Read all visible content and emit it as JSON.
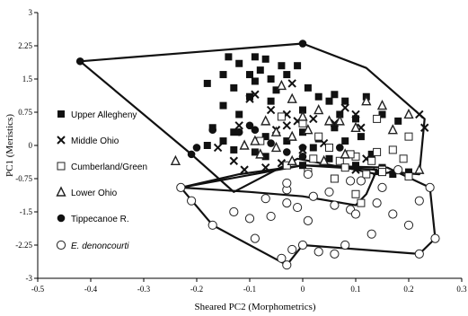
{
  "chart_data": {
    "type": "scatter",
    "xlabel": "Sheared PC2 (Morphometrics)",
    "ylabel": "PC1 (Meristics)",
    "xlim": [
      -0.5,
      0.3
    ],
    "ylim": [
      -3,
      3
    ],
    "xticks": [
      "-0.5",
      "-0.4",
      "-0.3",
      "-0.2",
      "-0.1",
      "0",
      "0.1",
      "0.2",
      "0.3"
    ],
    "yticks": [
      "-3",
      "-2.25",
      "-1.5",
      "-0.75",
      "0",
      "0.75",
      "1.5",
      "2.25",
      "3"
    ],
    "legend_position": "left",
    "series": [
      {
        "name": "Upper Allegheny",
        "marker": "filled-square",
        "points": [
          [
            -0.14,
            2.0
          ],
          [
            -0.09,
            2.0
          ],
          [
            -0.07,
            1.95
          ],
          [
            -0.12,
            1.85
          ],
          [
            -0.04,
            1.8
          ],
          [
            -0.01,
            1.8
          ],
          [
            -0.08,
            1.7
          ],
          [
            -0.15,
            1.6
          ],
          [
            -0.1,
            1.6
          ],
          [
            -0.06,
            1.5
          ],
          [
            -0.03,
            1.6
          ],
          [
            -0.09,
            1.45
          ],
          [
            -0.18,
            1.4
          ],
          [
            -0.13,
            1.3
          ],
          [
            -0.05,
            1.25
          ],
          [
            0.01,
            1.3
          ],
          [
            0.03,
            1.1
          ],
          [
            0.06,
            1.15
          ],
          [
            0.08,
            1.0
          ],
          [
            0.12,
            1.1
          ],
          [
            -0.1,
            1.1
          ],
          [
            -0.06,
            1.0
          ],
          [
            0.05,
            1.0
          ],
          [
            -0.15,
            0.9
          ],
          [
            0.0,
            0.8
          ],
          [
            0.07,
            0.7
          ],
          [
            -0.12,
            0.7
          ],
          [
            0.1,
            0.6
          ],
          [
            0.15,
            0.7
          ],
          [
            -0.17,
            0.4
          ],
          [
            -0.13,
            0.3
          ],
          [
            0.0,
            0.3
          ],
          [
            0.06,
            0.4
          ],
          [
            0.11,
            0.2
          ],
          [
            -0.15,
            0.1
          ],
          [
            -0.07,
            0.2
          ],
          [
            -0.03,
            0.1
          ],
          [
            0.03,
            0.15
          ],
          [
            0.08,
            0.1
          ],
          [
            -0.18,
            0.0
          ],
          [
            -0.13,
            -0.1
          ],
          [
            -0.09,
            -0.15
          ],
          [
            0.02,
            -0.05
          ],
          [
            -0.07,
            -0.25
          ],
          [
            0.05,
            -0.3
          ],
          [
            0.1,
            -0.45
          ],
          [
            0.15,
            -0.5
          ],
          [
            0.17,
            -0.65
          ],
          [
            0.2,
            -0.6
          ],
          [
            0.13,
            -0.2
          ],
          [
            0.18,
            0.55
          ],
          [
            0.0,
            -0.45
          ]
        ]
      },
      {
        "name": "Middle Ohio",
        "marker": "x",
        "points": [
          [
            -0.1,
            1.05
          ],
          [
            -0.09,
            1.15
          ],
          [
            -0.06,
            0.8
          ],
          [
            -0.02,
            1.4
          ],
          [
            -0.03,
            0.7
          ],
          [
            0.02,
            0.6
          ],
          [
            0.06,
            0.5
          ],
          [
            0.08,
            0.85
          ],
          [
            0.1,
            0.7
          ],
          [
            0.11,
            0.4
          ],
          [
            -0.12,
            0.45
          ],
          [
            -0.05,
            0.35
          ],
          [
            -0.03,
            0.45
          ],
          [
            0.04,
            0.05
          ],
          [
            0.09,
            -0.2
          ],
          [
            0.12,
            -0.3
          ],
          [
            0.22,
            0.7
          ],
          [
            0.23,
            0.4
          ],
          [
            -0.16,
            -0.05
          ],
          [
            -0.13,
            -0.35
          ],
          [
            -0.11,
            -0.55
          ],
          [
            -0.07,
            -0.5
          ],
          [
            -0.04,
            -0.4
          ],
          [
            0.0,
            -0.1
          ],
          [
            0.1,
            -0.55
          ],
          [
            0.14,
            -0.6
          ],
          [
            -0.01,
            0.55
          ]
        ]
      },
      {
        "name": "Cumberland/Green",
        "marker": "open-square",
        "points": [
          [
            -0.04,
            0.65
          ],
          [
            0.0,
            0.5
          ],
          [
            -0.08,
            0.1
          ],
          [
            0.03,
            0.2
          ],
          [
            0.05,
            -0.05
          ],
          [
            0.07,
            -0.35
          ],
          [
            0.08,
            -0.5
          ],
          [
            0.1,
            -0.25
          ],
          [
            0.12,
            -0.65
          ],
          [
            0.13,
            -0.35
          ],
          [
            0.15,
            -0.55
          ],
          [
            0.14,
            -0.15
          ],
          [
            0.17,
            -0.1
          ],
          [
            0.19,
            -0.3
          ],
          [
            0.2,
            -0.7
          ],
          [
            0.1,
            -1.1
          ],
          [
            0.11,
            -1.3
          ],
          [
            0.02,
            -0.3
          ],
          [
            -0.03,
            -0.45
          ],
          [
            0.06,
            -0.75
          ],
          [
            0.09,
            -0.2
          ],
          [
            0.01,
            -0.6
          ],
          [
            0.14,
            0.6
          ],
          [
            0.15,
            -0.6
          ],
          [
            0.2,
            0.2
          ]
        ]
      },
      {
        "name": "Lower Ohio",
        "marker": "open-triangle",
        "points": [
          [
            -0.04,
            1.35
          ],
          [
            -0.02,
            1.05
          ],
          [
            0.03,
            0.8
          ],
          [
            0.0,
            0.65
          ],
          [
            0.1,
            0.4
          ],
          [
            0.12,
            1.0
          ],
          [
            0.15,
            0.9
          ],
          [
            -0.07,
            0.55
          ],
          [
            -0.05,
            0.3
          ],
          [
            -0.02,
            0.2
          ],
          [
            0.01,
            0.35
          ],
          [
            0.07,
            0.55
          ],
          [
            -0.11,
            0.0
          ],
          [
            -0.08,
            -0.2
          ],
          [
            -0.05,
            -0.05
          ],
          [
            -0.02,
            -0.35
          ],
          [
            0.04,
            -0.35
          ],
          [
            0.08,
            -0.2
          ],
          [
            0.17,
            0.35
          ],
          [
            0.22,
            -0.55
          ],
          [
            -0.24,
            -0.35
          ],
          [
            -0.09,
            0.1
          ],
          [
            0.05,
            0.55
          ],
          [
            0.2,
            0.7
          ]
        ]
      },
      {
        "name": "Tippecanoe R.",
        "marker": "filled-circle",
        "points": [
          [
            -0.42,
            1.9
          ],
          [
            0.0,
            2.3
          ],
          [
            -0.2,
            -0.05
          ],
          [
            -0.21,
            -0.2
          ],
          [
            -0.1,
            0.45
          ],
          [
            -0.09,
            0.35
          ],
          [
            -0.06,
            0.05
          ],
          [
            -0.03,
            -0.15
          ],
          [
            0.0,
            -0.25
          ],
          [
            0.0,
            -0.05
          ],
          [
            -0.12,
            0.3
          ],
          [
            -0.17,
            0.35
          ],
          [
            0.07,
            -0.05
          ]
        ]
      },
      {
        "name": "E. denoncourti",
        "marker": "open-circle",
        "points": [
          [
            -0.23,
            -0.95
          ],
          [
            -0.21,
            -1.25
          ],
          [
            -0.17,
            -1.8
          ],
          [
            -0.1,
            -1.65
          ],
          [
            -0.07,
            -1.2
          ],
          [
            -0.03,
            -1.0
          ],
          [
            -0.03,
            -1.3
          ],
          [
            -0.01,
            -1.4
          ],
          [
            0.02,
            -1.15
          ],
          [
            0.01,
            -1.7
          ],
          [
            0.0,
            -2.25
          ],
          [
            -0.02,
            -2.35
          ],
          [
            -0.04,
            -2.55
          ],
          [
            -0.03,
            -2.7
          ],
          [
            0.05,
            -1.05
          ],
          [
            0.06,
            -1.35
          ],
          [
            0.09,
            -1.45
          ],
          [
            0.1,
            -1.55
          ],
          [
            0.14,
            -1.3
          ],
          [
            0.17,
            -1.55
          ],
          [
            0.2,
            -1.8
          ],
          [
            0.22,
            -1.25
          ],
          [
            0.24,
            -0.95
          ],
          [
            0.25,
            -2.1
          ],
          [
            0.22,
            -2.45
          ],
          [
            0.13,
            -2.0
          ],
          [
            0.08,
            -2.25
          ],
          [
            0.06,
            -2.45
          ],
          [
            0.03,
            -2.4
          ],
          [
            -0.13,
            -1.5
          ],
          [
            -0.09,
            -2.1
          ],
          [
            -0.06,
            -1.6
          ],
          [
            0.15,
            -0.95
          ],
          [
            0.11,
            -0.8
          ],
          [
            0.01,
            -0.65
          ],
          [
            -0.03,
            -0.85
          ],
          [
            0.18,
            -0.55
          ],
          [
            0.09,
            -0.8
          ]
        ]
      }
    ],
    "hulls": [
      {
        "name": "Tippecanoe R.",
        "points": [
          [
            -0.42,
            1.9
          ],
          [
            0.0,
            2.3
          ],
          [
            0.12,
            1.75
          ],
          [
            0.23,
            0.6
          ],
          [
            0.22,
            -0.65
          ],
          [
            0.17,
            -0.6
          ],
          [
            0.14,
            -0.65
          ],
          [
            0.1,
            -0.55
          ],
          [
            -0.01,
            -0.3
          ],
          [
            -0.13,
            -1.05
          ],
          [
            -0.21,
            -0.2
          ]
        ]
      },
      {
        "name": "E. denoncourti",
        "points": [
          [
            -0.23,
            -0.95
          ],
          [
            -0.12,
            -0.65
          ],
          [
            0.0,
            -0.45
          ],
          [
            0.16,
            -0.5
          ],
          [
            0.24,
            -0.95
          ],
          [
            0.25,
            -2.1
          ],
          [
            0.22,
            -2.45
          ],
          [
            0.0,
            -2.25
          ],
          [
            -0.03,
            -2.7
          ],
          [
            -0.17,
            -1.8
          ]
        ]
      },
      {
        "name": "Cumberland/Green",
        "points": [
          [
            -0.23,
            -0.95
          ],
          [
            0.0,
            -0.45
          ],
          [
            0.14,
            -0.55
          ],
          [
            0.12,
            -1.1
          ],
          [
            0.1,
            -1.35
          ],
          [
            0.0,
            -1.15
          ],
          [
            -0.1,
            -1.05
          ]
        ]
      }
    ]
  }
}
